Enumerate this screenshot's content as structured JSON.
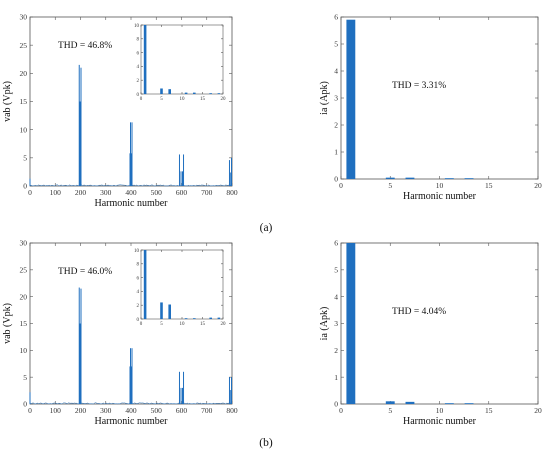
{
  "colors": {
    "accent": "#1f6fbf",
    "axis": "#555555",
    "text": "#111111"
  },
  "captions": [
    "(a)",
    "(b)"
  ],
  "chart_data": [
    {
      "type": "line",
      "panel": "a-left",
      "annotation": "THD = 46.8%",
      "xlabel": "Harmonic number",
      "ylabel": "vab (Vpk)",
      "xlim": [
        0,
        800
      ],
      "ylim": [
        0,
        30
      ],
      "xticks": [
        0,
        100,
        200,
        300,
        400,
        500,
        600,
        700,
        800
      ],
      "yticks": [
        0,
        5,
        10,
        15,
        20,
        25,
        30
      ],
      "peaks": [
        [
          0,
          1.3
        ],
        [
          195,
          21.5
        ],
        [
          198,
          15
        ],
        [
          202,
          21
        ],
        [
          398,
          11.3
        ],
        [
          404,
          11.3
        ],
        [
          396,
          5.8
        ],
        [
          402,
          5.8
        ],
        [
          592,
          5.6
        ],
        [
          608,
          5.6
        ],
        [
          598,
          2.6
        ],
        [
          604,
          2.6
        ],
        [
          790,
          4.6
        ],
        [
          798,
          5
        ],
        [
          795,
          2.4
        ]
      ],
      "inset": {
        "type": "bar",
        "xlim": [
          0,
          20
        ],
        "ylim": [
          0,
          10
        ],
        "xticks": [
          0,
          5,
          10,
          15,
          20
        ],
        "yticks": [
          0,
          2,
          4,
          6,
          8,
          10
        ],
        "x": [
          1,
          5,
          7,
          11,
          13,
          17,
          19
        ],
        "values": [
          10,
          0.8,
          0.7,
          0.2,
          0.2,
          0.1,
          0.1
        ]
      }
    },
    {
      "type": "bar",
      "panel": "a-right",
      "annotation": "THD = 3.31%",
      "xlabel": "Harmonic number",
      "ylabel": "ia (Apk)",
      "xlim": [
        0,
        20
      ],
      "ylim": [
        0,
        6
      ],
      "xticks": [
        0,
        5,
        10,
        15,
        20
      ],
      "yticks": [
        0,
        1,
        2,
        3,
        4,
        5,
        6
      ],
      "x": [
        1,
        5,
        7,
        11,
        13
      ],
      "values": [
        5.9,
        0.05,
        0.05,
        0.02,
        0.02
      ]
    },
    {
      "type": "line",
      "panel": "b-left",
      "annotation": "THD = 46.0%",
      "xlabel": "Harmonic number",
      "ylabel": "vab (Vpk)",
      "xlim": [
        0,
        800
      ],
      "ylim": [
        0,
        30
      ],
      "xticks": [
        0,
        100,
        200,
        300,
        400,
        500,
        600,
        700,
        800
      ],
      "yticks": [
        0,
        5,
        10,
        15,
        20,
        25,
        30
      ],
      "peaks": [
        [
          0,
          2.2
        ],
        [
          195,
          21.7
        ],
        [
          198,
          15
        ],
        [
          202,
          21.5
        ],
        [
          398,
          10.4
        ],
        [
          404,
          10.4
        ],
        [
          396,
          7
        ],
        [
          402,
          7
        ],
        [
          592,
          6
        ],
        [
          608,
          6
        ],
        [
          598,
          3
        ],
        [
          604,
          3
        ],
        [
          790,
          5
        ],
        [
          798,
          5
        ],
        [
          795,
          2.6
        ]
      ],
      "inset": {
        "type": "bar",
        "xlim": [
          0,
          20
        ],
        "ylim": [
          0,
          10
        ],
        "xticks": [
          0,
          5,
          10,
          15,
          20
        ],
        "yticks": [
          0,
          2,
          4,
          6,
          8,
          10
        ],
        "x": [
          1,
          5,
          7,
          11,
          13,
          17,
          19
        ],
        "values": [
          10,
          2.4,
          2.1,
          0.1,
          0.1,
          0.2,
          0.2
        ]
      }
    },
    {
      "type": "bar",
      "panel": "b-right",
      "annotation": "THD = 4.04%",
      "xlabel": "Harmonic number",
      "ylabel": "ia (Apk)",
      "xlim": [
        0,
        20
      ],
      "ylim": [
        0,
        6
      ],
      "xticks": [
        0,
        5,
        10,
        15,
        20
      ],
      "yticks": [
        0,
        1,
        2,
        3,
        4,
        5,
        6
      ],
      "x": [
        1,
        5,
        7,
        11,
        13
      ],
      "values": [
        6,
        0.1,
        0.08,
        0.02,
        0.02
      ]
    }
  ]
}
